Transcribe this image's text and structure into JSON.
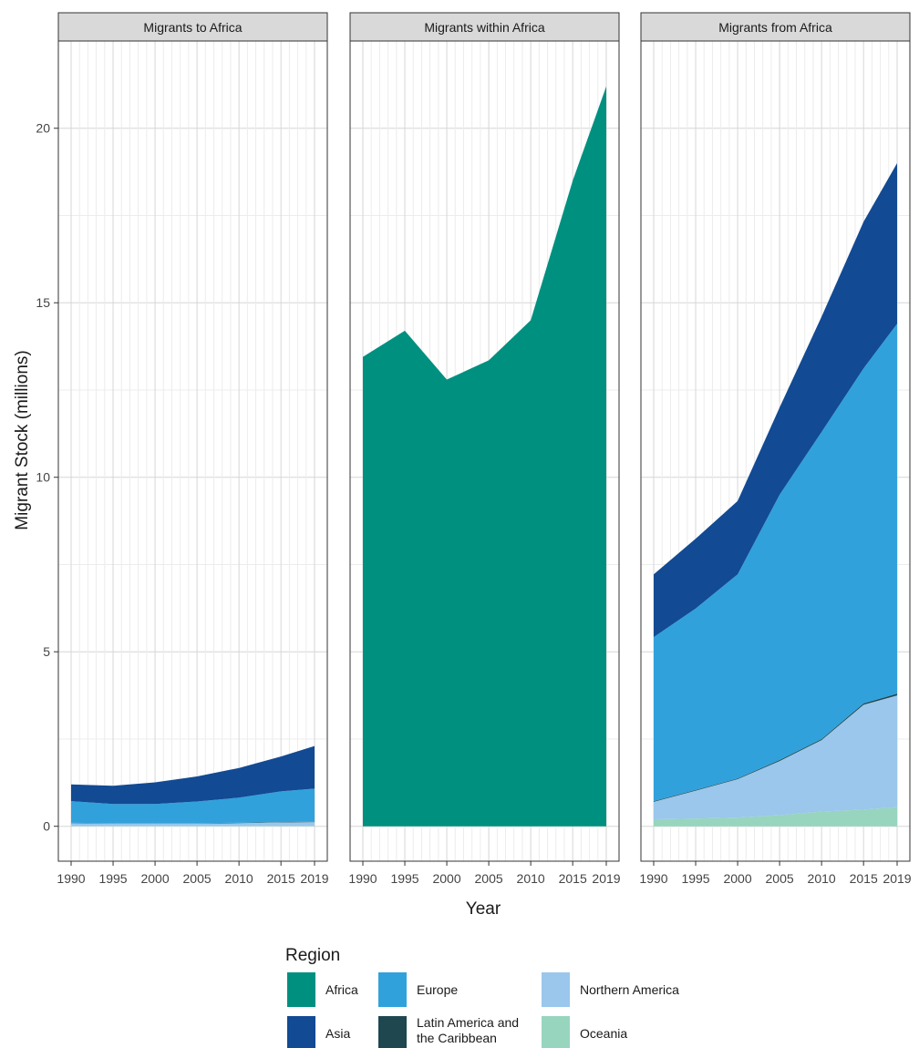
{
  "chart_data": {
    "type": "area",
    "ylabel": "Migrant Stock (millions)",
    "xlabel": "Year",
    "x": [
      1990,
      1995,
      2000,
      2005,
      2010,
      2015,
      2019
    ],
    "x_tick_labels": [
      "1990",
      "1995",
      "2000",
      "2005",
      "2010",
      "2015",
      "2019"
    ],
    "ylim": [
      -1,
      22.5
    ],
    "y_ticks": [
      0,
      5,
      10,
      15,
      20
    ],
    "grid": true,
    "stacked": true,
    "legend": {
      "title": "Region",
      "placement": "bottom",
      "entries": [
        {
          "name": "Africa",
          "color": "#009080"
        },
        {
          "name": "Asia",
          "color": "#124A93"
        },
        {
          "name": "Europe",
          "color": "#31A1DC"
        },
        {
          "name": "Latin America and the Caribbean",
          "color": "#1E4750"
        },
        {
          "name": "Northern America",
          "color": "#9AC7EB"
        },
        {
          "name": "Oceania",
          "color": "#97D5BE"
        }
      ]
    },
    "panels": [
      {
        "title": "Migrants to Africa",
        "series": [
          {
            "name": "Oceania",
            "values": [
              0.01,
              0.01,
              0.01,
              0.01,
              0.01,
              0.01,
              0.01
            ]
          },
          {
            "name": "Northern America",
            "values": [
              0.08,
              0.07,
              0.07,
              0.07,
              0.08,
              0.1,
              0.11
            ]
          },
          {
            "name": "Latin America and the Caribbean",
            "values": [
              0.01,
              0.01,
              0.01,
              0.01,
              0.01,
              0.01,
              0.01
            ]
          },
          {
            "name": "Europe",
            "values": [
              0.62,
              0.55,
              0.55,
              0.62,
              0.72,
              0.88,
              0.95
            ]
          },
          {
            "name": "Asia",
            "values": [
              0.48,
              0.52,
              0.62,
              0.72,
              0.85,
              1.0,
              1.22
            ]
          }
        ]
      },
      {
        "title": "Migrants within Africa",
        "series": [
          {
            "name": "Africa",
            "values": [
              13.45,
              14.2,
              12.8,
              13.35,
              14.5,
              18.5,
              21.2
            ]
          }
        ]
      },
      {
        "title": "Migrants from Africa",
        "series": [
          {
            "name": "Oceania",
            "values": [
              0.2,
              0.22,
              0.25,
              0.32,
              0.42,
              0.48,
              0.55
            ]
          },
          {
            "name": "Northern America",
            "values": [
              0.5,
              0.8,
              1.1,
              1.55,
              2.05,
              3.0,
              3.2
            ]
          },
          {
            "name": "Latin America and the Caribbean",
            "values": [
              0.02,
              0.02,
              0.02,
              0.03,
              0.03,
              0.04,
              0.05
            ]
          },
          {
            "name": "Europe",
            "values": [
              4.7,
              5.2,
              5.85,
              7.6,
              8.8,
              9.6,
              10.6
            ]
          },
          {
            "name": "Asia",
            "values": [
              1.8,
              2.0,
              2.1,
              2.5,
              3.3,
              4.2,
              4.6
            ]
          }
        ]
      }
    ]
  }
}
